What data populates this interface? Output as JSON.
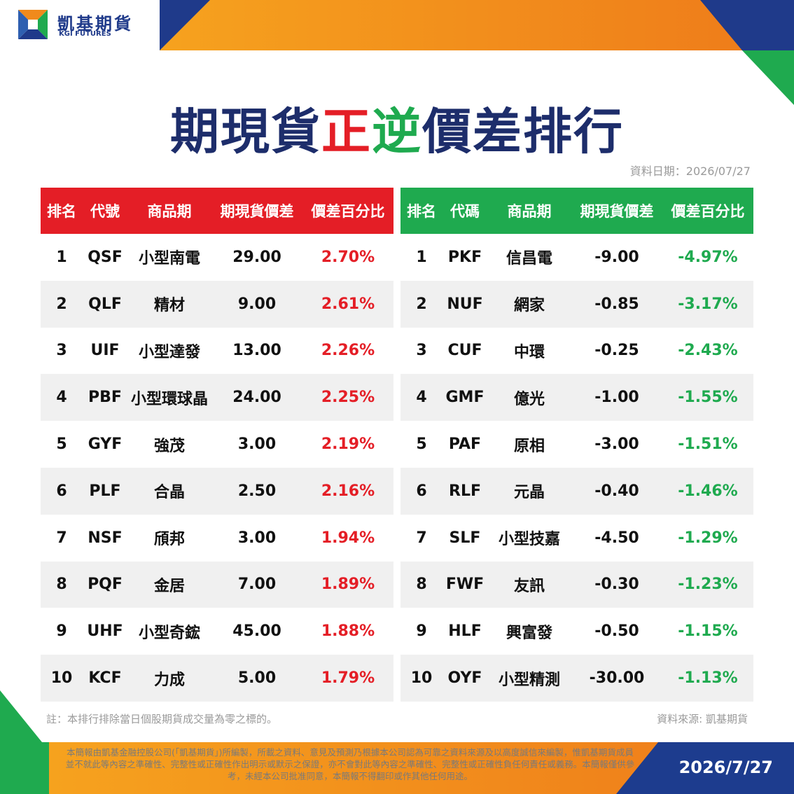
{
  "brand": {
    "name_cn": "凱基期貨",
    "name_en": "KGI FUTURES"
  },
  "title": {
    "part1": "期現貨",
    "part_zheng": "正",
    "part_ni": "逆",
    "part2": "價差排行"
  },
  "data_date": "資料日期：2026/07/27",
  "colors": {
    "navy": "#1d2d6b",
    "red": "#e41e26",
    "green": "#1faa4f",
    "orange": "#f08a1c"
  },
  "left_table": {
    "headers": [
      "排名",
      "代號",
      "商品期",
      "期現貨價差",
      "價差百分比"
    ],
    "rows": [
      {
        "rank": "1",
        "code": "QSF",
        "name": "小型南電",
        "spread": "29.00",
        "pct": "2.70%"
      },
      {
        "rank": "2",
        "code": "QLF",
        "name": "精材",
        "spread": "9.00",
        "pct": "2.61%"
      },
      {
        "rank": "3",
        "code": "UIF",
        "name": "小型達發",
        "spread": "13.00",
        "pct": "2.26%"
      },
      {
        "rank": "4",
        "code": "PBF",
        "name": "小型環球晶",
        "spread": "24.00",
        "pct": "2.25%"
      },
      {
        "rank": "5",
        "code": "GYF",
        "name": "強茂",
        "spread": "3.00",
        "pct": "2.19%"
      },
      {
        "rank": "6",
        "code": "PLF",
        "name": "合晶",
        "spread": "2.50",
        "pct": "2.16%"
      },
      {
        "rank": "7",
        "code": "NSF",
        "name": "頎邦",
        "spread": "3.00",
        "pct": "1.94%"
      },
      {
        "rank": "8",
        "code": "PQF",
        "name": "金居",
        "spread": "7.00",
        "pct": "1.89%"
      },
      {
        "rank": "9",
        "code": "UHF",
        "name": "小型奇鋐",
        "spread": "45.00",
        "pct": "1.88%"
      },
      {
        "rank": "10",
        "code": "KCF",
        "name": "力成",
        "spread": "5.00",
        "pct": "1.79%"
      }
    ]
  },
  "right_table": {
    "headers": [
      "排名",
      "代碼",
      "商品期",
      "期現貨價差",
      "價差百分比"
    ],
    "rows": [
      {
        "rank": "1",
        "code": "PKF",
        "name": "信昌電",
        "spread": "-9.00",
        "pct": "-4.97%"
      },
      {
        "rank": "2",
        "code": "NUF",
        "name": "網家",
        "spread": "-0.85",
        "pct": "-3.17%"
      },
      {
        "rank": "3",
        "code": "CUF",
        "name": "中環",
        "spread": "-0.25",
        "pct": "-2.43%"
      },
      {
        "rank": "4",
        "code": "GMF",
        "name": "億光",
        "spread": "-1.00",
        "pct": "-1.55%"
      },
      {
        "rank": "5",
        "code": "PAF",
        "name": "原相",
        "spread": "-3.00",
        "pct": "-1.51%"
      },
      {
        "rank": "6",
        "code": "RLF",
        "name": "元晶",
        "spread": "-0.40",
        "pct": "-1.46%"
      },
      {
        "rank": "7",
        "code": "SLF",
        "name": "小型技嘉",
        "spread": "-4.50",
        "pct": "-1.29%"
      },
      {
        "rank": "8",
        "code": "FWF",
        "name": "友訊",
        "spread": "-0.30",
        "pct": "-1.23%"
      },
      {
        "rank": "9",
        "code": "HLF",
        "name": "興富發",
        "spread": "-0.50",
        "pct": "-1.15%"
      },
      {
        "rank": "10",
        "code": "OYF",
        "name": "小型精測",
        "spread": "-30.00",
        "pct": "-1.13%"
      }
    ]
  },
  "note": "註：本排行排除當日個股期貨成交量為零之標的。",
  "source": "資料來源: 凱基期貨",
  "disclaimer": "本簡報由凱基金融控股公司(「凱基期貨」)所編製，所載之資料、意見及預測乃根據本公司認為可靠之資料來源及以高度誠信來編製，惟凱基期貨成員並不就此等內容之準確性、完整性或正確性作出明示或默示之保證，亦不會對此等內容之準確性、完整性或正確性負任何責任或義務。本簡報僅供參考，未經本公司批准同意，本簡報不得翻印或作其他任何用途。",
  "footer_date": "2026/7/27"
}
